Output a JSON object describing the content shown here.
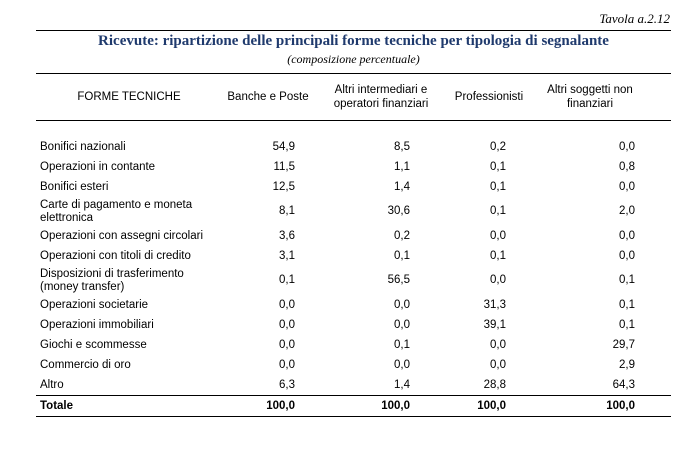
{
  "tavola": "Tavola a.2.12",
  "title": "Ricevute: ripartizione delle principali forme tecniche per tipologia di segnalante",
  "subtitle": "(composizione percentuale)",
  "headers": [
    "FORME TECNICHE",
    "Banche e Poste",
    "Altri intermediari e operatori finanziari",
    "Professionisti",
    "Altri soggetti non finanziari"
  ],
  "rows": [
    {
      "label": "Bonifici nazionali",
      "values": [
        "54,9",
        "8,5",
        "0,2",
        "0,0"
      ]
    },
    {
      "label": "Operazioni in contante",
      "values": [
        "11,5",
        "1,1",
        "0,1",
        "0,8"
      ]
    },
    {
      "label": "Bonifici esteri",
      "values": [
        "12,5",
        "1,4",
        "0,1",
        "0,0"
      ]
    },
    {
      "label": "Carte di pagamento e moneta elettronica",
      "values": [
        "8,1",
        "30,6",
        "0,1",
        "2,0"
      ]
    },
    {
      "label": "Operazioni con assegni circolari",
      "values": [
        "3,6",
        "0,2",
        "0,0",
        "0,0"
      ]
    },
    {
      "label": "Operazioni con titoli di credito",
      "values": [
        "3,1",
        "0,1",
        "0,1",
        "0,0"
      ]
    },
    {
      "label": "Disposizioni di trasferimento (money transfer)",
      "values": [
        "0,1",
        "56,5",
        "0,0",
        "0,1"
      ]
    },
    {
      "label": "Operazioni societarie",
      "values": [
        "0,0",
        "0,0",
        "31,3",
        "0,1"
      ]
    },
    {
      "label": "Operazioni immobiliari",
      "values": [
        "0,0",
        "0,0",
        "39,1",
        "0,1"
      ]
    },
    {
      "label": "Giochi e scommesse",
      "values": [
        "0,0",
        "0,1",
        "0,0",
        "29,7"
      ]
    },
    {
      "label": "Commercio di oro",
      "values": [
        "0,0",
        "0,0",
        "0,0",
        "2,9"
      ]
    },
    {
      "label": "Altro",
      "values": [
        "6,3",
        "1,4",
        "28,8",
        "64,3"
      ]
    }
  ],
  "total": {
    "label": "Totale",
    "values": [
      "100,0",
      "100,0",
      "100,0",
      "100,0"
    ]
  }
}
